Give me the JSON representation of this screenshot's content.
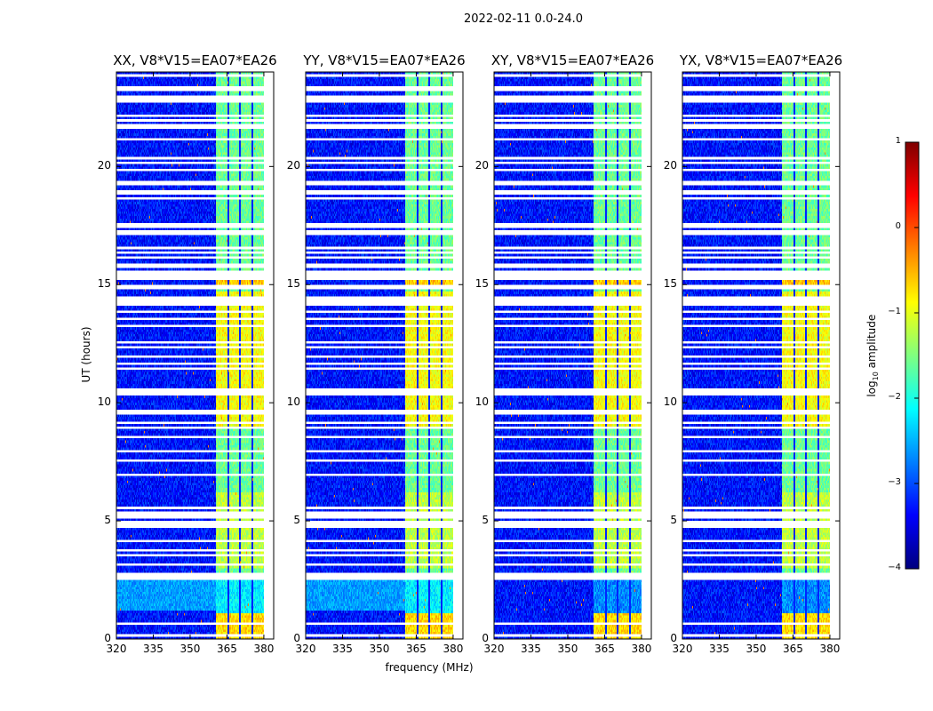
{
  "chart_data": {
    "type": "heatmap",
    "title": "2022-02-11 0.0-24.0",
    "xlabel": "frequency (MHz)",
    "ylabel": "UT (hours)",
    "xlim": [
      320,
      384
    ],
    "ylim": [
      0,
      24
    ],
    "xticks": [
      "320",
      "335",
      "350",
      "365",
      "380"
    ],
    "xtick_values": [
      320,
      335,
      350,
      365,
      380
    ],
    "yticks": [
      "0",
      "5",
      "10",
      "15",
      "20"
    ],
    "ytick_values": [
      0,
      5,
      10,
      15,
      20
    ],
    "panels": [
      {
        "title": "XX, V8*V15=EA07*EA26",
        "pol": "XX"
      },
      {
        "title": "YY, V8*V15=EA07*EA26",
        "pol": "YY"
      },
      {
        "title": "XY, V8*V15=EA07*EA26",
        "pol": "XY"
      },
      {
        "title": "YX, V8*V15=EA07*EA26",
        "pol": "YX"
      }
    ],
    "colorbar": {
      "label": "log10 amplitude",
      "label_main": "log",
      "label_sub": "10",
      "label_rest": " amplitude",
      "colormap": "jet",
      "range": [
        -4,
        1
      ],
      "ticks": [
        "1",
        "0",
        "−1",
        "−2",
        "−3",
        "−4"
      ],
      "tick_values": [
        1,
        0,
        -1,
        -2,
        -3,
        -4
      ]
    },
    "bright_band_mhz": [
      360.5,
      380
    ],
    "background_log_amp": -3.3
  }
}
